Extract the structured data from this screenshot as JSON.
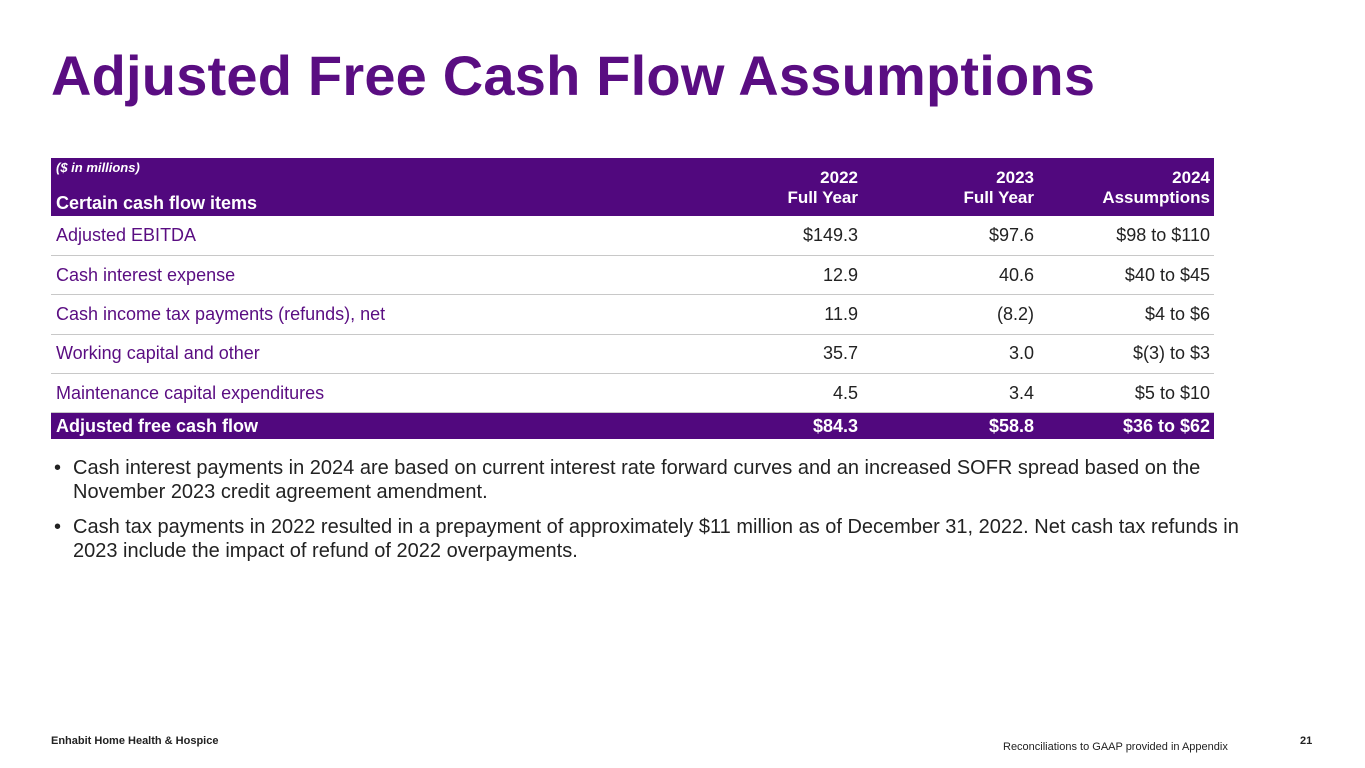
{
  "slide": {
    "title": "Adjusted Free Cash Flow Assumptions"
  },
  "table": {
    "unit_note": "($ in millions)",
    "header_label": "Certain cash flow items",
    "columns": [
      {
        "line1": "2022",
        "line2": "Full Year"
      },
      {
        "line1": "2023",
        "line2": "Full Year"
      },
      {
        "line1": "2024",
        "line2": "Assumptions"
      }
    ],
    "rows": [
      {
        "label": "Adjusted EBITDA",
        "values": [
          "$149.3",
          "$97.6",
          "$98 to $110"
        ]
      },
      {
        "label": "Cash interest expense",
        "values": [
          "12.9",
          "40.6",
          "$40 to $45"
        ]
      },
      {
        "label": "Cash income tax payments (refunds), net",
        "values": [
          "11.9",
          "(8.2)",
          "$4 to $6"
        ]
      },
      {
        "label": "Working capital and other",
        "values": [
          "35.7",
          "3.0",
          "$(3) to $3"
        ]
      },
      {
        "label": "Maintenance capital expenditures",
        "values": [
          "4.5",
          "3.4",
          "$5 to $10"
        ]
      }
    ],
    "total": {
      "label": "Adjusted free cash flow",
      "values": [
        "$84.3",
        "$58.8",
        "$36 to $62"
      ]
    }
  },
  "bullets": [
    "Cash interest payments in 2024 are based on current interest rate forward curves and an increased SOFR spread based on the November 2023 credit agreement amendment.",
    "Cash tax payments in 2022 resulted in a prepayment of approximately $11 million as of December 31, 2022. Net cash tax refunds in 2023 include the impact of refund of 2022 overpayments."
  ],
  "bullet_glyph": "•",
  "footer": {
    "company": "Enhabit Home Health & Hospice",
    "note": "Reconciliations to GAAP provided in Appendix",
    "page_number": "21"
  },
  "colors": {
    "brand_purple": "#51087e",
    "title_purple": "#5a0d82"
  }
}
